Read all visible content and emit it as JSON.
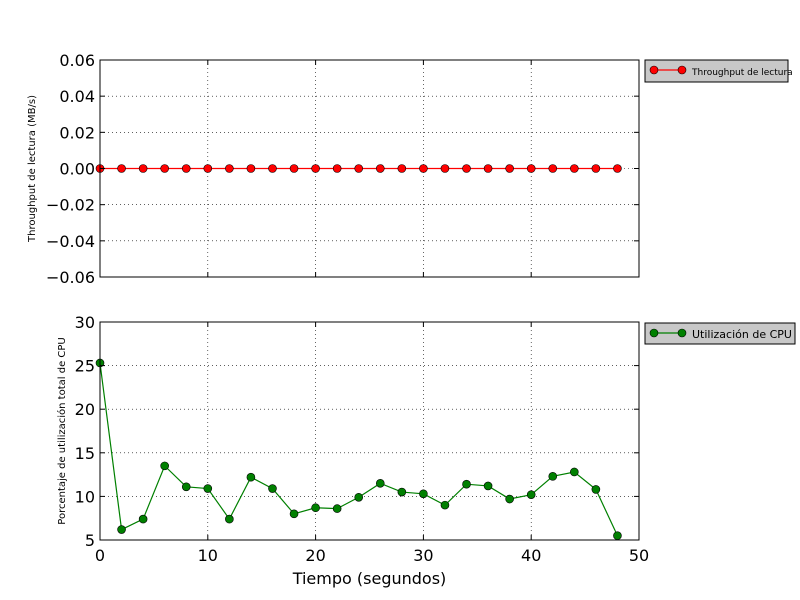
{
  "chart_data": [
    {
      "type": "line",
      "ylabel": "Throughput de lectura (MB/s)",
      "xlabel": "",
      "xlim": [
        0,
        50
      ],
      "ylim": [
        -0.06,
        0.06
      ],
      "xticks": [
        "0",
        "10",
        "20",
        "30",
        "40",
        "50"
      ],
      "yticks": [
        "0.06",
        "0.04",
        "0.02",
        "0.00",
        "−0.02",
        "−0.04",
        "−0.06"
      ],
      "grid": true,
      "legend": "outside-right-top",
      "series": [
        {
          "name": "Throughput de lectura",
          "color": "#ff0000",
          "marker": "circle",
          "x": [
            0,
            2,
            4,
            6,
            8,
            10,
            12,
            14,
            16,
            18,
            20,
            22,
            24,
            26,
            28,
            30,
            32,
            34,
            36,
            38,
            40,
            42,
            44,
            46,
            48
          ],
          "y": [
            0,
            0,
            0,
            0,
            0,
            0,
            0,
            0,
            0,
            0,
            0,
            0,
            0,
            0,
            0,
            0,
            0,
            0,
            0,
            0,
            0,
            0,
            0,
            0,
            0
          ]
        }
      ]
    },
    {
      "type": "line",
      "ylabel": "Porcentaje de utilización total de CPU",
      "xlabel": "Tiempo (segundos)",
      "xlim": [
        0,
        50
      ],
      "ylim": [
        5,
        30
      ],
      "xticks": [
        "0",
        "10",
        "20",
        "30",
        "40",
        "50"
      ],
      "yticks": [
        "30",
        "25",
        "20",
        "15",
        "10",
        "5"
      ],
      "grid": true,
      "legend": "outside-right-top",
      "series": [
        {
          "name": "Utilización de CPU",
          "color": "#008000",
          "marker": "circle",
          "x": [
            0,
            2,
            4,
            6,
            8,
            10,
            12,
            14,
            16,
            18,
            20,
            22,
            24,
            26,
            28,
            30,
            32,
            34,
            36,
            38,
            40,
            42,
            44,
            46,
            48
          ],
          "y": [
            25.3,
            6.2,
            7.4,
            13.5,
            11.1,
            10.9,
            7.4,
            12.2,
            10.9,
            8.0,
            8.7,
            8.6,
            9.9,
            11.5,
            10.5,
            10.3,
            9.0,
            11.4,
            11.2,
            9.7,
            10.2,
            12.3,
            12.8,
            10.8,
            5.5
          ]
        }
      ]
    }
  ]
}
